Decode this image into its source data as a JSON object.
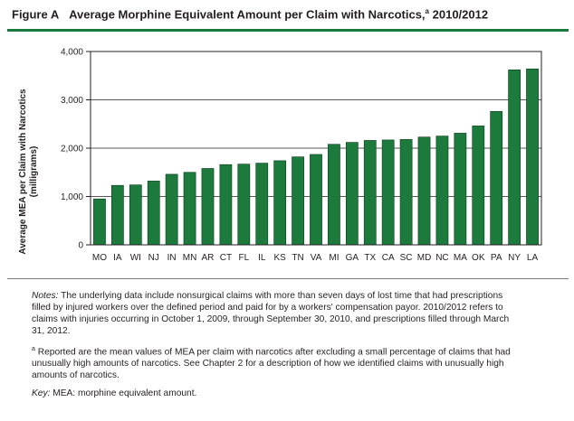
{
  "figure": {
    "title_prefix": "Figure A",
    "title_main": "Average Morphine Equivalent Amount per Claim with Narcotics,",
    "title_sup": "a",
    "title_suffix": "2010/2012"
  },
  "notes": {
    "notes_label": "Notes:",
    "notes_text": "The underlying data include nonsurgical claims with more than seven days of lost time that had prescriptions filled by injured workers over the defined period and paid for by a workers' compensation payor. 2010/2012 refers to claims with injuries occurring in October 1, 2009, through September 30, 2010, and prescriptions filled through March 31, 2012.",
    "footnote_marker": "a",
    "footnote_text": "Reported are the mean values of MEA per claim with narcotics after excluding a small percentage of claims that had unusually high amounts of narcotics. See Chapter 2 for a description of how we identified claims with unusually high amounts of narcotics.",
    "key_label": "Key:",
    "key_text": "MEA: morphine equivalent amount."
  },
  "chart_data": {
    "type": "bar",
    "ylabel": "Average MEA per Claim with Narcotics (milligrams)",
    "xlabel": "",
    "ylim": [
      0,
      4000
    ],
    "yticks": [
      0,
      1000,
      2000,
      3000,
      4000
    ],
    "ytick_labels": [
      "0",
      "1,000",
      "2,000",
      "3,000",
      "4,000"
    ],
    "grid": true,
    "bar_color": "#1b7a3c",
    "bar_edge_color": "#0d3d1d",
    "categories": [
      "MO",
      "IA",
      "WI",
      "NJ",
      "IN",
      "MN",
      "AR",
      "CT",
      "FL",
      "IL",
      "KS",
      "TN",
      "VA",
      "MI",
      "GA",
      "TX",
      "CA",
      "SC",
      "MD",
      "NC",
      "MA",
      "OK",
      "PA",
      "NY",
      "LA"
    ],
    "values": [
      950,
      1230,
      1240,
      1320,
      1460,
      1500,
      1580,
      1660,
      1670,
      1690,
      1740,
      1820,
      1870,
      2080,
      2120,
      2160,
      2170,
      2180,
      2230,
      2250,
      2310,
      2460,
      2760,
      3620,
      3640
    ]
  }
}
